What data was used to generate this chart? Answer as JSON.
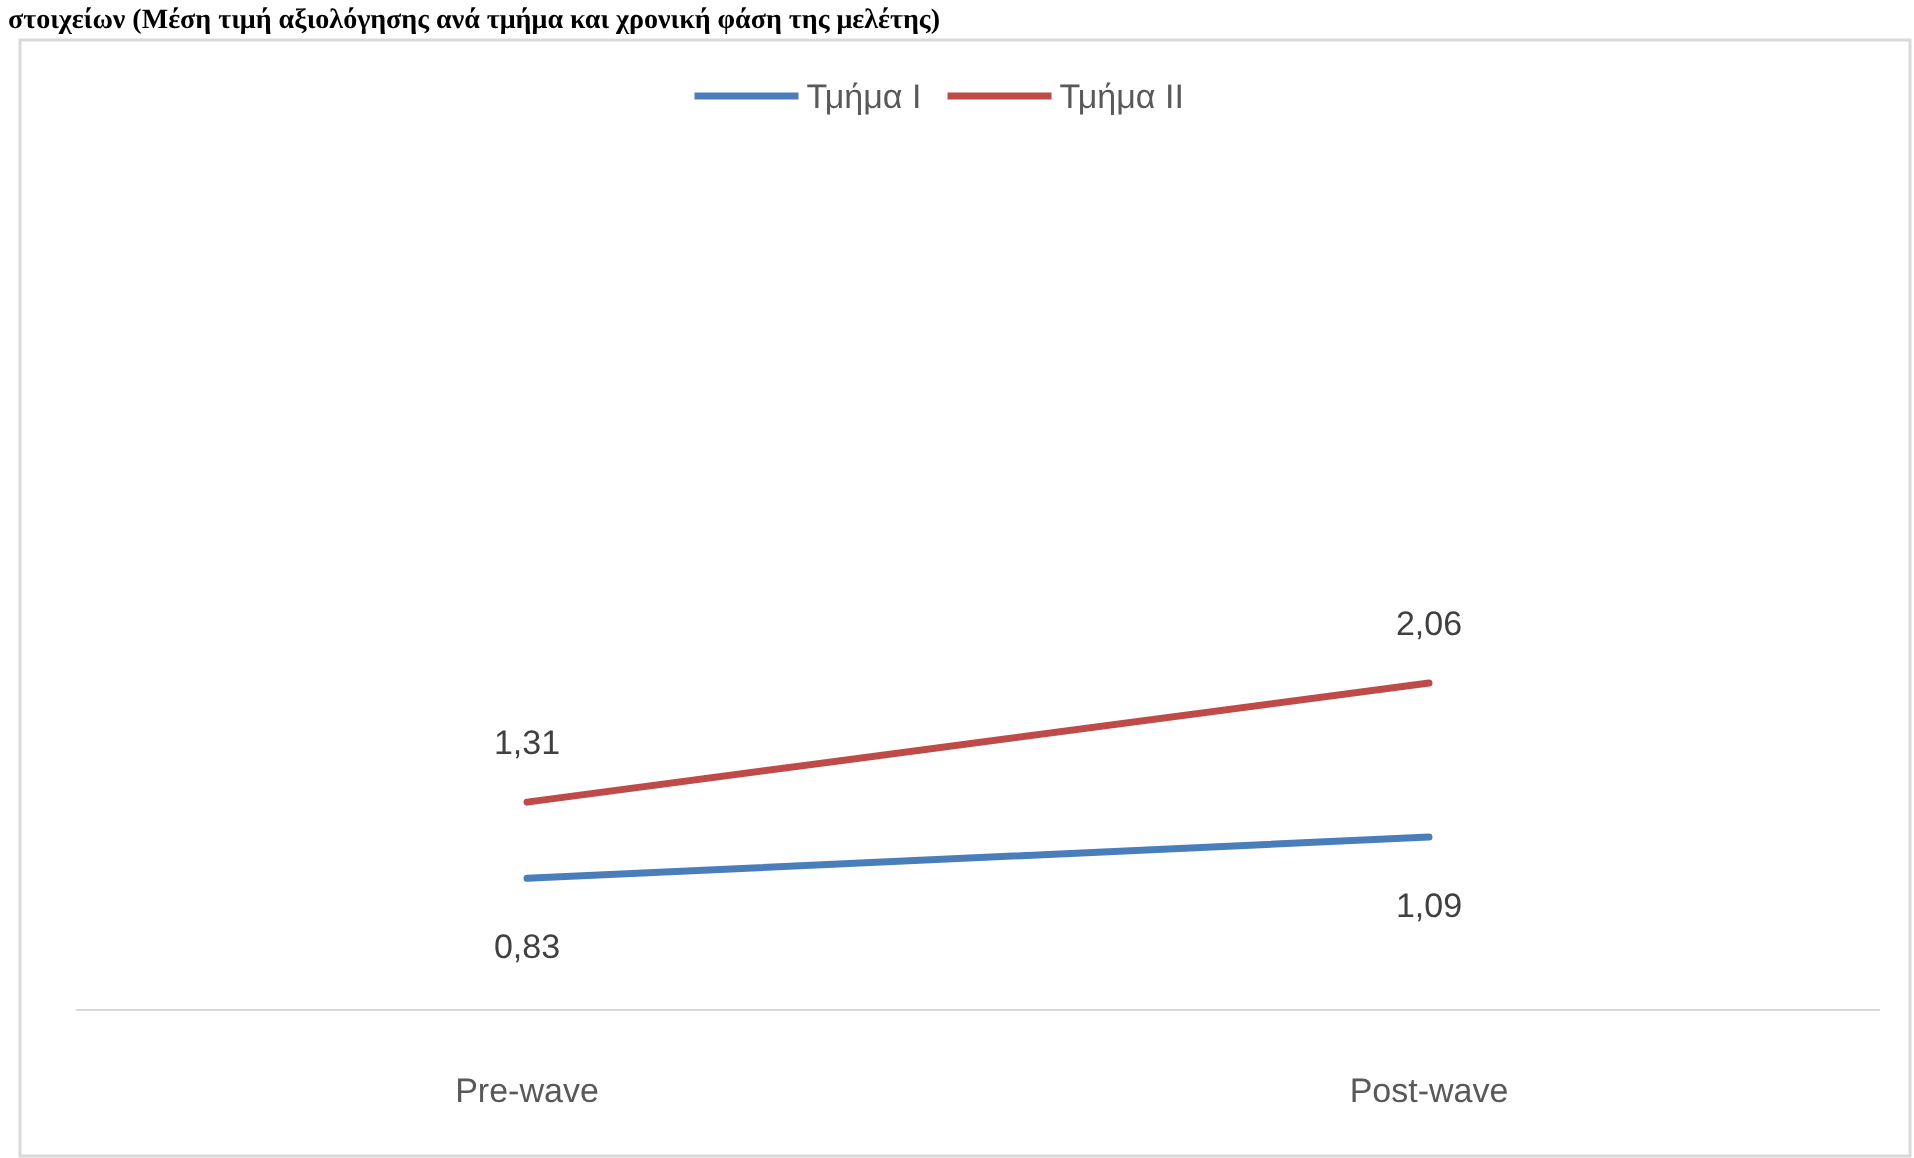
{
  "chart_data": {
    "type": "line",
    "title": "στοιχείων (Μέση τιμή αξιολόγησης ανά τμήμα και χρονική φάση της μελέτης)",
    "categories": [
      "Pre-wave",
      "Post-wave"
    ],
    "series": [
      {
        "name": "Τμήμα I",
        "color": "#4a7ebb",
        "values": [
          0.83,
          1.09
        ],
        "value_labels": [
          "0,83",
          "1,09"
        ]
      },
      {
        "name": "Τμήμα II",
        "color": "#be4b48",
        "values": [
          1.31,
          2.06
        ],
        "value_labels": [
          "1,31",
          "2,06"
        ]
      }
    ],
    "legend": "top",
    "marker": "none",
    "line_style": "solid"
  }
}
